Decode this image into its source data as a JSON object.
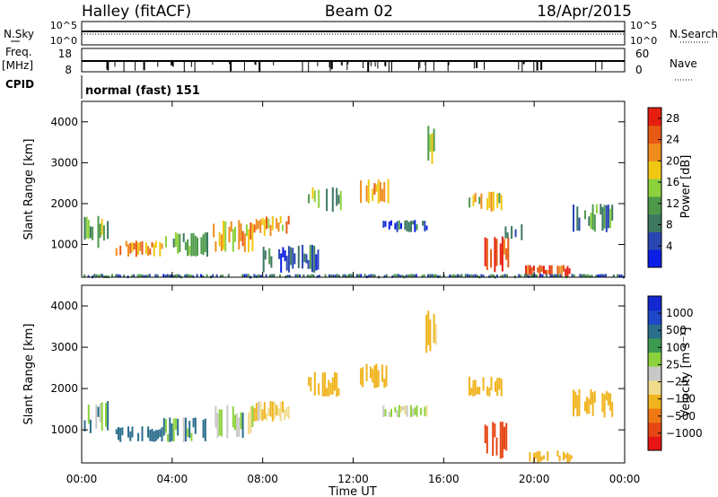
{
  "header": {
    "station": "Halley (fitACF)",
    "beam": "Beam 02",
    "date": "18/Apr/2015"
  },
  "info_panels": {
    "nsky_label": "N.Sky",
    "nsky_ticks": [
      "10^5",
      "10^0"
    ],
    "nsearch_label": "N.Search",
    "nsearch_ticks": [
      "10^5",
      "10^0"
    ],
    "freq_label": "Freq.",
    "freq_unit": "[MHz]",
    "freq_ticks": [
      "18",
      "8"
    ],
    "nave_label": "Nave",
    "nave_ticks": [
      "60",
      "0"
    ],
    "cpid_label": "CPID",
    "cpid_value": "normal (fast) 151"
  },
  "colors": {
    "power_scale": [
      "#0a1ee6",
      "#2a46b4",
      "#3c7860",
      "#4e9a4a",
      "#8cd23c",
      "#f0c814",
      "#f08c1e",
      "#e65a14",
      "#e61e10"
    ],
    "velocity_scale": [
      "#e61414",
      "#e64614",
      "#f07814",
      "#f0b41e",
      "#f0dc8c",
      "#c8c8c8",
      "#8cd23c",
      "#3c9a50",
      "#2a6e8c",
      "#1e46c8",
      "#1428d2"
    ]
  },
  "chart_data": [
    {
      "type": "heatmap",
      "ylabel": "Slant Range [km]",
      "y_ticks": [
        "1000",
        "2000",
        "3000",
        "4000"
      ],
      "ylim": [
        200,
        4500
      ],
      "colorbar_label": "Power [dB]",
      "colorbar_ticks": [
        "4",
        "8",
        "12",
        "16",
        "20",
        "24",
        "28"
      ],
      "colorbar_range": [
        0,
        30
      ],
      "grid": false,
      "regions": [
        {
          "t": [
            0.1,
            1.2
          ],
          "r": [
            900,
            1700
          ],
          "v": 12
        },
        {
          "t": [
            1.5,
            3.6
          ],
          "r": [
            700,
            1100
          ],
          "v": 22
        },
        {
          "t": [
            3.6,
            5.6
          ],
          "r": [
            700,
            1300
          ],
          "v": 12
        },
        {
          "t": [
            5.8,
            7.6
          ],
          "r": [
            800,
            1600
          ],
          "v": 20
        },
        {
          "t": [
            7.6,
            9.2
          ],
          "r": [
            1200,
            1700
          ],
          "v": 20
        },
        {
          "t": [
            8.0,
            10.5
          ],
          "r": [
            300,
            1000
          ],
          "v": 6
        },
        {
          "t": [
            10.0,
            11.5
          ],
          "r": [
            1800,
            2400
          ],
          "v": 12
        },
        {
          "t": [
            12.3,
            13.6
          ],
          "r": [
            2000,
            2600
          ],
          "v": 20
        },
        {
          "t": [
            13.3,
            15.3
          ],
          "r": [
            1300,
            1600
          ],
          "v": 6
        },
        {
          "t": [
            15.2,
            15.7
          ],
          "r": [
            2800,
            3900
          ],
          "v": 16
        },
        {
          "t": [
            17.1,
            18.6
          ],
          "r": [
            1800,
            2300
          ],
          "v": 16
        },
        {
          "t": [
            17.8,
            18.9
          ],
          "r": [
            300,
            1200
          ],
          "v": 26
        },
        {
          "t": [
            18.7,
            19.5
          ],
          "r": [
            1100,
            1500
          ],
          "v": 10
        },
        {
          "t": [
            19.6,
            21.7
          ],
          "r": [
            200,
            500
          ],
          "v": 26
        },
        {
          "t": [
            21.7,
            23.5
          ],
          "r": [
            1300,
            2000
          ],
          "v": 10
        },
        {
          "t": [
            0.0,
            24.0
          ],
          "r": [
            200,
            280
          ],
          "v": 8
        }
      ]
    },
    {
      "type": "heatmap",
      "xlabel": "Time UT",
      "x_ticks": [
        "00:00",
        "04:00",
        "08:00",
        "12:00",
        "16:00",
        "20:00",
        "00:00"
      ],
      "xlim": [
        0,
        24
      ],
      "ylabel": "Slant Range [km]",
      "y_ticks": [
        "1000",
        "2000",
        "3000",
        "4000"
      ],
      "ylim": [
        200,
        4500
      ],
      "colorbar_label": "Velocity [m s⁻¹]",
      "colorbar_ticks": [
        "1000",
        "500",
        "100",
        "25",
        "−25",
        "−100",
        "−500",
        "−1000"
      ],
      "grid": false,
      "regions": [
        {
          "t": [
            0.1,
            1.2
          ],
          "r": [
            900,
            1700
          ],
          "v": 100
        },
        {
          "t": [
            1.5,
            3.6
          ],
          "r": [
            700,
            1100
          ],
          "v": 200
        },
        {
          "t": [
            3.6,
            5.6
          ],
          "r": [
            700,
            1300
          ],
          "v": 100
        },
        {
          "t": [
            5.8,
            7.6
          ],
          "r": [
            800,
            1600
          ],
          "v": 50
        },
        {
          "t": [
            7.6,
            9.2
          ],
          "r": [
            1200,
            1700
          ],
          "v": -100
        },
        {
          "t": [
            10.0,
            11.5
          ],
          "r": [
            1800,
            2400
          ],
          "v": -300
        },
        {
          "t": [
            12.3,
            13.6
          ],
          "r": [
            2000,
            2600
          ],
          "v": -200
        },
        {
          "t": [
            13.3,
            15.3
          ],
          "r": [
            1300,
            1600
          ],
          "v": 0
        },
        {
          "t": [
            15.2,
            15.7
          ],
          "r": [
            2800,
            3900
          ],
          "v": -150
        },
        {
          "t": [
            17.1,
            18.6
          ],
          "r": [
            1800,
            2300
          ],
          "v": -200
        },
        {
          "t": [
            17.8,
            18.9
          ],
          "r": [
            300,
            1200
          ],
          "v": -600
        },
        {
          "t": [
            19.6,
            21.7
          ],
          "r": [
            200,
            500
          ],
          "v": -200
        },
        {
          "t": [
            21.7,
            23.5
          ],
          "r": [
            1300,
            2000
          ],
          "v": -300
        }
      ]
    }
  ]
}
